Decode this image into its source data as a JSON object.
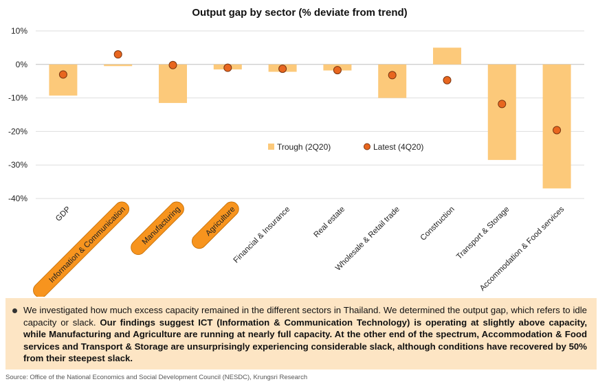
{
  "chart_data": {
    "type": "bar",
    "title": "Output gap by sector (% deviate from trend)",
    "categories": [
      "GDP",
      "Information & Communication",
      "Manufacturing",
      "Agriculture",
      "Financial & Insurance",
      "Real estate",
      "Wholesale & Retail trade",
      "Construction",
      "Transport & Storage",
      "Accommodation & Food services"
    ],
    "highlighted_categories": [
      "Information & Communication",
      "Manufacturing",
      "Agriculture"
    ],
    "series": [
      {
        "name": "Trough (2Q20)",
        "type": "bar",
        "values": [
          -9.3,
          -0.5,
          -11.5,
          -1.5,
          -2.2,
          -1.8,
          -10.0,
          5.0,
          -28.5,
          -37.0
        ]
      },
      {
        "name": "Latest (4Q20)",
        "type": "scatter",
        "values": [
          -3.0,
          3.0,
          -0.2,
          -1.0,
          -1.3,
          -1.7,
          -3.2,
          -4.7,
          -11.8,
          -19.6
        ]
      }
    ],
    "yticks": [
      "10%",
      "0%",
      "-10%",
      "-20%",
      "-30%",
      "-40%"
    ],
    "ylim": [
      -40,
      10
    ],
    "grid": true,
    "legend_position": "center-right",
    "colors": {
      "trough": "#fcc97a",
      "latest": "#e8661f",
      "latest_edge": "#7a3510",
      "highlight": "#f7941e"
    }
  },
  "note": {
    "plain": "We investigated how much excess capacity remained in the different sectors in Thailand. We determined the output gap, which refers to idle capacity or slack. ",
    "bold": "Our findings suggest ICT (Information & Communication Technology) is operating at slightly above capacity, while Manufacturing and Agriculture are running at nearly full capacity. At the other end of the spectrum, Accommodation & Food services and Transport & Storage are unsurprisingly experiencing considerable slack, although conditions have recovered by 50% from their steepest slack."
  },
  "source": "Source: Office of the National Economics and Social Development Council (NESDC), Krungsri Research"
}
